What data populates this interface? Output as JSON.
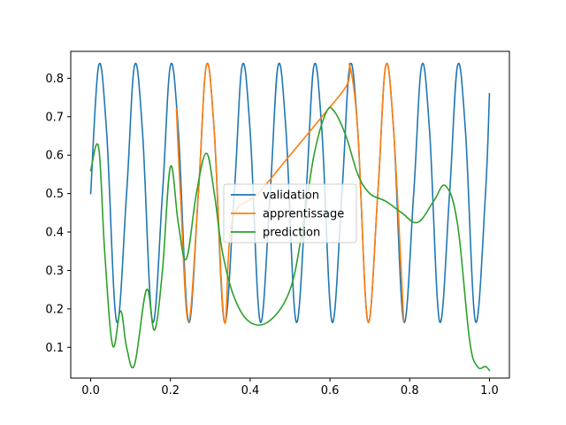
{
  "chart_data": {
    "type": "line",
    "title": "",
    "xlabel": "",
    "ylabel": "",
    "xlim": [
      -0.05,
      1.05
    ],
    "ylim": [
      0.02,
      0.87
    ],
    "grid": false,
    "legend_position": "center",
    "x_ticks": [
      {
        "value": 0.0,
        "label": "0.0"
      },
      {
        "value": 0.2,
        "label": "0.2"
      },
      {
        "value": 0.4,
        "label": "0.4"
      },
      {
        "value": 0.6,
        "label": "0.6"
      },
      {
        "value": 0.8,
        "label": "0.8"
      },
      {
        "value": 1.0,
        "label": "1.0"
      }
    ],
    "y_ticks": [
      {
        "value": 0.1,
        "label": "0.1"
      },
      {
        "value": 0.2,
        "label": "0.2"
      },
      {
        "value": 0.3,
        "label": "0.3"
      },
      {
        "value": 0.4,
        "label": "0.4"
      },
      {
        "value": 0.5,
        "label": "0.5"
      },
      {
        "value": 0.6,
        "label": "0.6"
      },
      {
        "value": 0.7,
        "label": "0.7"
      },
      {
        "value": 0.8,
        "label": "0.8"
      }
    ],
    "series": [
      {
        "name": "validation",
        "color": "#1f77b4",
        "points": [
          [
            0.0,
            0.5
          ],
          [
            0.02,
            0.833
          ],
          [
            0.04,
            0.66
          ],
          [
            0.065,
            0.167
          ],
          [
            0.09,
            0.5
          ],
          [
            0.11,
            0.833
          ],
          [
            0.13,
            0.66
          ],
          [
            0.155,
            0.167
          ],
          [
            0.18,
            0.5
          ],
          [
            0.2,
            0.833
          ],
          [
            0.22,
            0.66
          ],
          [
            0.245,
            0.167
          ],
          [
            0.27,
            0.5
          ],
          [
            0.29,
            0.833
          ],
          [
            0.31,
            0.66
          ],
          [
            0.335,
            0.167
          ],
          [
            0.36,
            0.5
          ],
          [
            0.38,
            0.833
          ],
          [
            0.4,
            0.66
          ],
          [
            0.425,
            0.167
          ],
          [
            0.45,
            0.5
          ],
          [
            0.47,
            0.833
          ],
          [
            0.49,
            0.66
          ],
          [
            0.515,
            0.167
          ],
          [
            0.54,
            0.5
          ],
          [
            0.56,
            0.833
          ],
          [
            0.58,
            0.66
          ],
          [
            0.605,
            0.167
          ],
          [
            0.63,
            0.5
          ],
          [
            0.65,
            0.833
          ],
          [
            0.67,
            0.66
          ],
          [
            0.695,
            0.167
          ],
          [
            0.72,
            0.5
          ],
          [
            0.74,
            0.833
          ],
          [
            0.76,
            0.66
          ],
          [
            0.785,
            0.167
          ],
          [
            0.81,
            0.5
          ],
          [
            0.83,
            0.833
          ],
          [
            0.85,
            0.66
          ],
          [
            0.875,
            0.167
          ],
          [
            0.9,
            0.5
          ],
          [
            0.92,
            0.833
          ],
          [
            0.94,
            0.66
          ],
          [
            0.965,
            0.167
          ],
          [
            0.99,
            0.5
          ],
          [
            1.0,
            0.76
          ]
        ]
      },
      {
        "name": "apprentissage",
        "color": "#ff7f0e",
        "points": [
          [
            0.215,
            0.72
          ],
          [
            0.225,
            0.5
          ],
          [
            0.245,
            0.167
          ],
          [
            0.27,
            0.5
          ],
          [
            0.29,
            0.833
          ],
          [
            0.31,
            0.66
          ],
          [
            0.335,
            0.167
          ],
          [
            0.355,
            0.43
          ],
          [
            0.42,
            0.5
          ],
          [
            0.5,
            0.6
          ],
          [
            0.58,
            0.7
          ],
          [
            0.643,
            0.783
          ],
          [
            0.65,
            0.833
          ],
          [
            0.67,
            0.66
          ],
          [
            0.695,
            0.167
          ],
          [
            0.72,
            0.5
          ],
          [
            0.74,
            0.833
          ],
          [
            0.76,
            0.66
          ],
          [
            0.785,
            0.167
          ]
        ]
      },
      {
        "name": "prediction",
        "color": "#2ca02c",
        "points": [
          [
            0.0,
            0.56
          ],
          [
            0.02,
            0.62
          ],
          [
            0.035,
            0.35
          ],
          [
            0.055,
            0.105
          ],
          [
            0.075,
            0.195
          ],
          [
            0.09,
            0.1
          ],
          [
            0.11,
            0.055
          ],
          [
            0.14,
            0.25
          ],
          [
            0.16,
            0.145
          ],
          [
            0.18,
            0.3
          ],
          [
            0.2,
            0.57
          ],
          [
            0.22,
            0.42
          ],
          [
            0.24,
            0.33
          ],
          [
            0.265,
            0.5
          ],
          [
            0.29,
            0.605
          ],
          [
            0.31,
            0.5
          ],
          [
            0.33,
            0.35
          ],
          [
            0.36,
            0.23
          ],
          [
            0.4,
            0.165
          ],
          [
            0.45,
            0.17
          ],
          [
            0.5,
            0.25
          ],
          [
            0.53,
            0.4
          ],
          [
            0.56,
            0.6
          ],
          [
            0.59,
            0.71
          ],
          [
            0.61,
            0.715
          ],
          [
            0.64,
            0.65
          ],
          [
            0.67,
            0.55
          ],
          [
            0.7,
            0.5
          ],
          [
            0.74,
            0.48
          ],
          [
            0.78,
            0.45
          ],
          [
            0.82,
            0.425
          ],
          [
            0.86,
            0.48
          ],
          [
            0.89,
            0.52
          ],
          [
            0.92,
            0.42
          ],
          [
            0.95,
            0.12
          ],
          [
            0.97,
            0.05
          ],
          [
            0.99,
            0.05
          ],
          [
            1.0,
            0.04
          ]
        ]
      }
    ]
  }
}
